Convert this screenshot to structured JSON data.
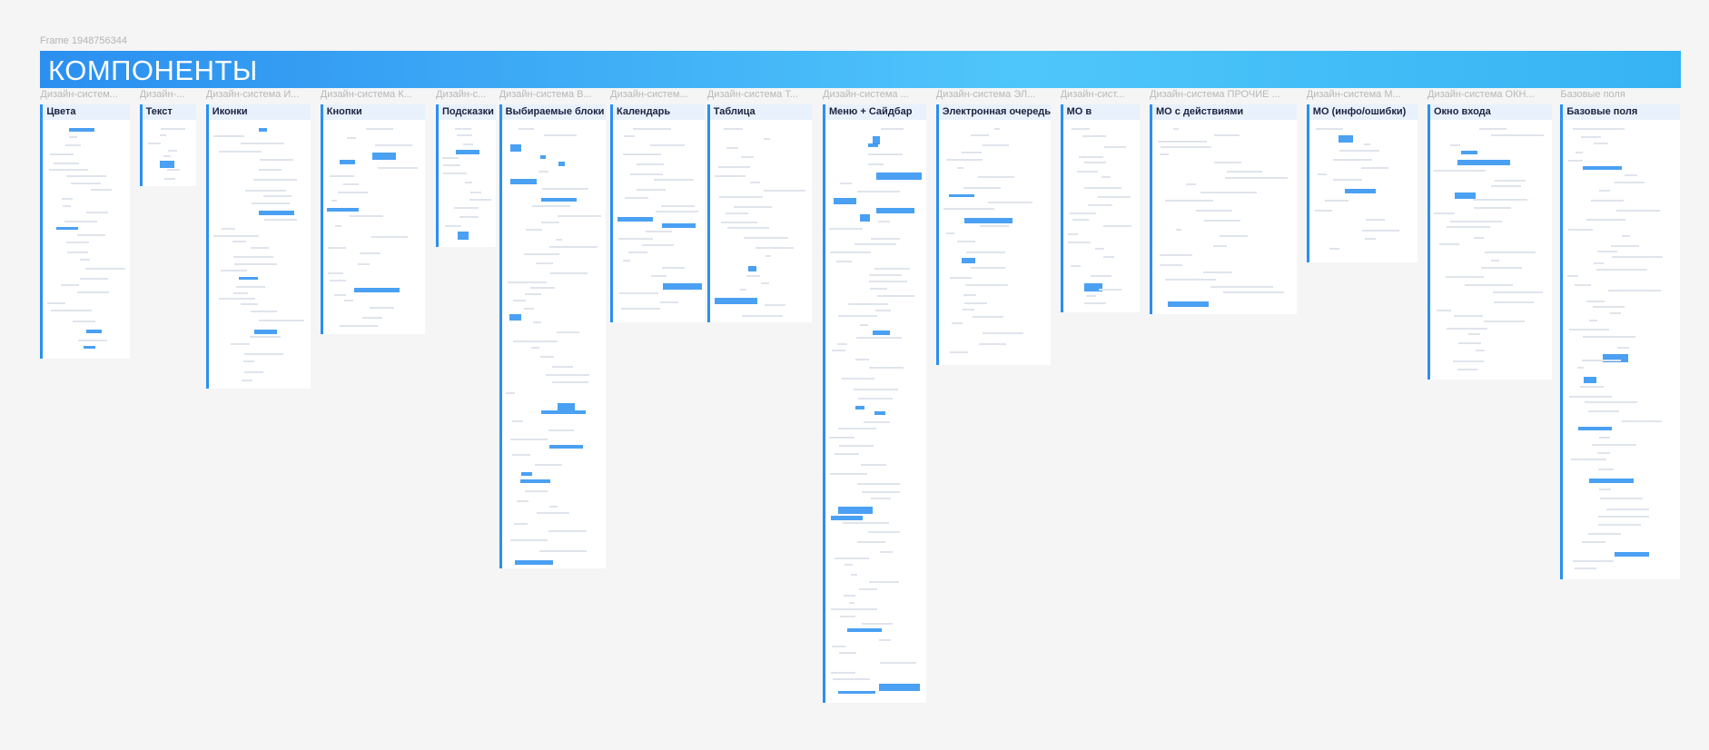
{
  "header": {
    "frame_label": "Frame 1948756344",
    "title": "КОМПОНЕНТЫ"
  },
  "columns": [
    {
      "label": "Дизайн-систем...",
      "title": "Цвета"
    },
    {
      "label": "Дизайн-...",
      "title": "Текст"
    },
    {
      "label": "Дизайн-система И...",
      "title": "Иконки"
    },
    {
      "label": "Дизайн-система К...",
      "title": "Кнопки"
    },
    {
      "label": "Дизайн-с...",
      "title": "Подсказки"
    },
    {
      "label": "Дизайн-система В...",
      "title": "Выбираемые блоки"
    },
    {
      "label": "Дизайн-систем...",
      "title": "Календарь"
    },
    {
      "label": "Дизайн-система Т...",
      "title": "Таблица"
    },
    {
      "label": "Дизайн-система ...",
      "title": "Меню + Сайдбар"
    },
    {
      "label": "Дизайн-система ЭЛ...",
      "title": "Электронная очередь"
    },
    {
      "label": "Дизайн-сист...",
      "title": "МО в"
    },
    {
      "label": "Дизайн-система ПРОЧИЕ ...",
      "title": "МО с действиями"
    },
    {
      "label": "Дизайн-система М...",
      "title": "МО (инфо/ошибки)"
    },
    {
      "label": "Дизайн-система ОКН...",
      "title": "Окно входа"
    },
    {
      "label": "Базовые поля",
      "title": "Базовые поля"
    }
  ]
}
